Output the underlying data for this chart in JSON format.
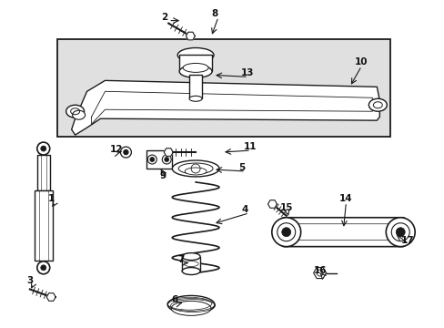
{
  "bg_color": "#ffffff",
  "fig_width": 4.89,
  "fig_height": 3.6,
  "dpi": 100,
  "line_color": "#1a1a1a",
  "box_fill": "#e0e0e0",
  "white": "#ffffff"
}
